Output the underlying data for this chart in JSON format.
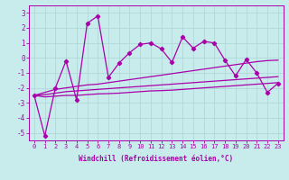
{
  "title": "",
  "xlabel": "Windchill (Refroidissement éolien,°C)",
  "background_color": "#c8ecec",
  "grid_color": "#b0d8d8",
  "line_color": "#aa00aa",
  "x_values": [
    0,
    1,
    2,
    3,
    4,
    5,
    6,
    7,
    8,
    9,
    10,
    11,
    12,
    13,
    14,
    15,
    16,
    17,
    18,
    19,
    20,
    21,
    22,
    23
  ],
  "y_main": [
    -2.5,
    -5.2,
    -2.0,
    -0.2,
    -2.8,
    2.3,
    2.8,
    -1.3,
    -0.35,
    0.35,
    0.9,
    1.0,
    0.6,
    -0.3,
    1.4,
    0.65,
    1.1,
    1.0,
    -0.15,
    -1.2,
    -0.1,
    -1.0,
    -2.3,
    -1.7
  ],
  "y_reg1": [
    -2.5,
    -2.3,
    -2.1,
    -2.0,
    -1.9,
    -1.8,
    -1.75,
    -1.65,
    -1.55,
    -1.45,
    -1.35,
    -1.25,
    -1.15,
    -1.05,
    -0.95,
    -0.85,
    -0.75,
    -0.65,
    -0.55,
    -0.45,
    -0.35,
    -0.25,
    -0.18,
    -0.15
  ],
  "y_reg2": [
    -2.5,
    -2.45,
    -2.35,
    -2.25,
    -2.2,
    -2.15,
    -2.1,
    -2.05,
    -2.0,
    -1.95,
    -1.9,
    -1.85,
    -1.8,
    -1.75,
    -1.7,
    -1.65,
    -1.6,
    -1.55,
    -1.5,
    -1.45,
    -1.4,
    -1.35,
    -1.3,
    -1.25
  ],
  "y_reg3": [
    -2.5,
    -2.6,
    -2.55,
    -2.5,
    -2.5,
    -2.45,
    -2.4,
    -2.38,
    -2.35,
    -2.3,
    -2.25,
    -2.2,
    -2.18,
    -2.15,
    -2.1,
    -2.05,
    -2.0,
    -1.95,
    -1.9,
    -1.85,
    -1.8,
    -1.75,
    -1.7,
    -1.65
  ],
  "ylim": [
    -5.5,
    3.5
  ],
  "xlim": [
    -0.5,
    23.5
  ],
  "yticks": [
    -5,
    -4,
    -3,
    -2,
    -1,
    0,
    1,
    2,
    3
  ],
  "xticks": [
    0,
    1,
    2,
    3,
    4,
    5,
    6,
    7,
    8,
    9,
    10,
    11,
    12,
    13,
    14,
    15,
    16,
    17,
    18,
    19,
    20,
    21,
    22,
    23
  ],
  "tick_fontsize": 5.0,
  "xlabel_fontsize": 5.5
}
